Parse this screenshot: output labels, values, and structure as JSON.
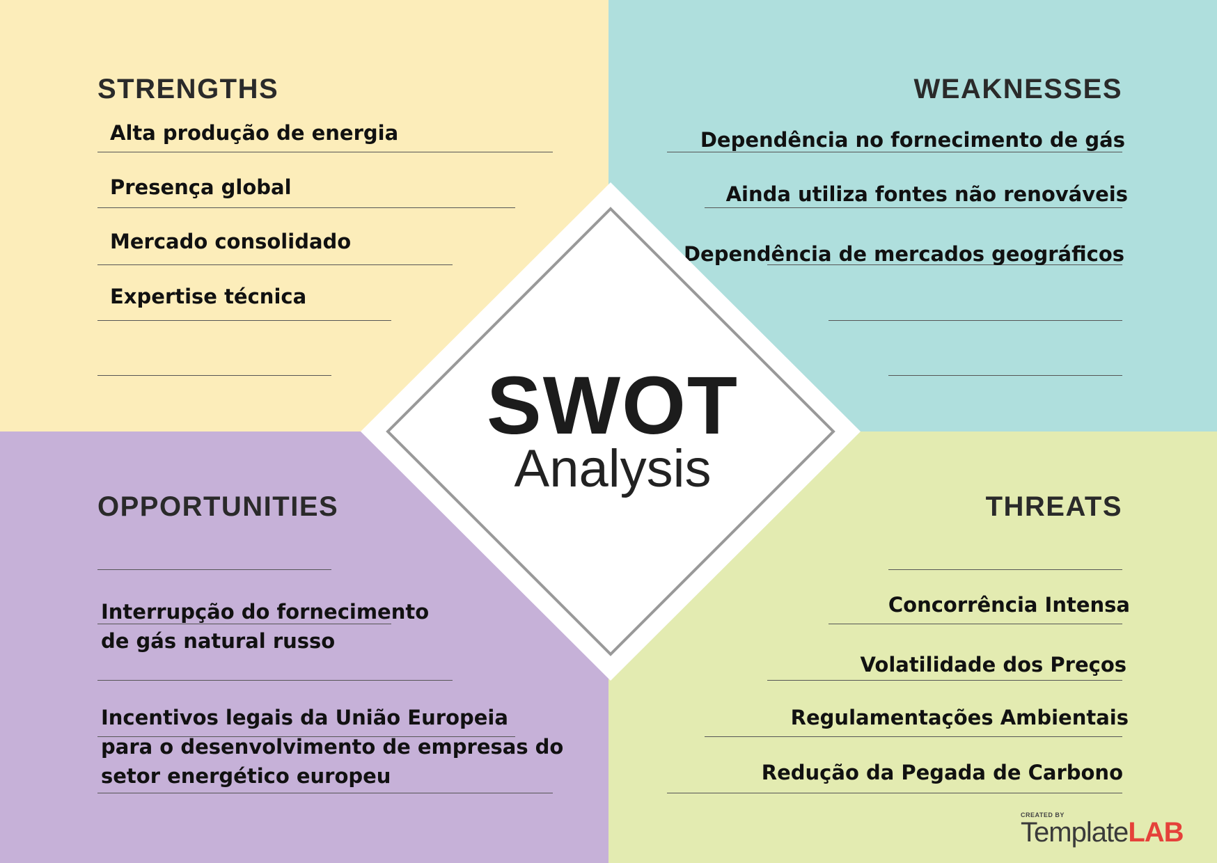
{
  "colors": {
    "strengths": "#fcedba",
    "weaknesses": "#afdfdd",
    "opportunities": "#c6b1d8",
    "threats": "#e3ebb1",
    "diamond_border": "#999999",
    "logo_accent": "#e5413a"
  },
  "center": {
    "title": "SWOT",
    "subtitle": "Analysis"
  },
  "strengths": {
    "heading": "STRENGTHS",
    "items": [
      "Alta produção de energia",
      "Presença global",
      "Mercado consolidado",
      "Expertise técnica"
    ]
  },
  "weaknesses": {
    "heading": "WEAKNESSES",
    "items": [
      "Dependência no fornecimento de gás",
      "Ainda utiliza fontes não renováveis",
      "Dependência de mercados geográficos"
    ]
  },
  "opportunities": {
    "heading": "OPPORTUNITIES",
    "items": [
      "Interrupção do fornecimento\nde gás natural russo",
      "Incentivos legais da União Europeia\npara o desenvolvimento de empresas do\nsetor energético europeu"
    ]
  },
  "threats": {
    "heading": "THREATS",
    "items": [
      "Concorrência Intensa",
      "Volatilidade dos Preços",
      "Regulamentações Ambientais",
      "Redução da Pegada de Carbono"
    ]
  },
  "logo": {
    "created_by": "CREATED BY",
    "name_part1": "Template",
    "name_part2": "LAB"
  }
}
